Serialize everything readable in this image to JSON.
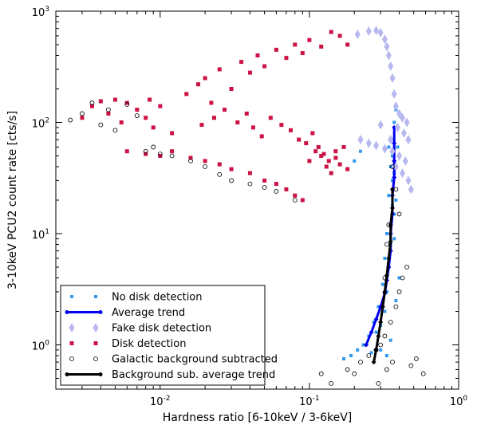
{
  "chart_data": {
    "type": "scatter",
    "xlabel": "Hardness ratio [6-10keV / 3-6keV]",
    "ylabel": "3-10keV PCU2 count rate [cts/s]",
    "xscale": "log",
    "yscale": "log",
    "xlim": [
      0.002,
      1.0
    ],
    "ylim": [
      0.4,
      1000
    ],
    "x_ticks": [
      {
        "value": 0.01,
        "base": "10",
        "exp": "-2"
      },
      {
        "value": 0.1,
        "base": "10",
        "exp": "-1"
      },
      {
        "value": 1.0,
        "base": "10",
        "exp": "0"
      }
    ],
    "y_ticks": [
      {
        "value": 1,
        "base": "10",
        "exp": "0"
      },
      {
        "value": 10,
        "base": "10",
        "exp": "1"
      },
      {
        "value": 100,
        "base": "10",
        "exp": "2"
      },
      {
        "value": 1000,
        "base": "10",
        "exp": "3"
      }
    ],
    "legend_position": "lower-left",
    "series": [
      {
        "name": "No disk detection",
        "marker": "square-small",
        "color": "#3399ee",
        "points": [
          [
            0.3,
            1.5
          ],
          [
            0.32,
            2.0
          ],
          [
            0.33,
            3.0
          ],
          [
            0.34,
            5.0
          ],
          [
            0.35,
            8.0
          ],
          [
            0.35,
            12
          ],
          [
            0.36,
            18
          ],
          [
            0.36,
            25
          ],
          [
            0.37,
            35
          ],
          [
            0.36,
            50
          ],
          [
            0.36,
            70
          ],
          [
            0.37,
            100
          ],
          [
            0.38,
            130
          ],
          [
            0.35,
            40
          ],
          [
            0.34,
            22
          ],
          [
            0.33,
            10
          ],
          [
            0.32,
            6
          ],
          [
            0.31,
            3.5
          ],
          [
            0.29,
            2.2
          ],
          [
            0.27,
            1.6
          ],
          [
            0.25,
            1.2
          ],
          [
            0.23,
            1.0
          ],
          [
            0.21,
            0.9
          ],
          [
            0.19,
            0.8
          ],
          [
            0.17,
            0.75
          ],
          [
            0.33,
            0.8
          ],
          [
            0.3,
            0.9
          ],
          [
            0.38,
            2.5
          ],
          [
            0.4,
            4.0
          ],
          [
            0.37,
            15
          ],
          [
            0.38,
            20
          ],
          [
            0.36,
            30
          ],
          [
            0.39,
            60
          ],
          [
            0.2,
            45
          ],
          [
            0.22,
            55
          ],
          [
            0.26,
            0.85
          ],
          [
            0.28,
            1.3
          ],
          [
            0.35,
            1.1
          ],
          [
            0.34,
            60
          ],
          [
            0.37,
            9
          ]
        ]
      },
      {
        "name": "Average trend",
        "marker": "line",
        "color": "#0000ee",
        "points": [
          [
            0.24,
            1.0
          ],
          [
            0.26,
            1.3
          ],
          [
            0.28,
            1.7
          ],
          [
            0.3,
            2.2
          ],
          [
            0.32,
            2.9
          ],
          [
            0.33,
            3.8
          ],
          [
            0.34,
            5.0
          ],
          [
            0.35,
            7.0
          ],
          [
            0.35,
            10
          ],
          [
            0.36,
            15
          ],
          [
            0.36,
            22
          ],
          [
            0.37,
            32
          ],
          [
            0.37,
            45
          ],
          [
            0.37,
            65
          ],
          [
            0.37,
            90
          ]
        ]
      },
      {
        "name": "Fake disk detection",
        "marker": "diamond",
        "color": "#b8b8f0",
        "points": [
          [
            0.21,
            620
          ],
          [
            0.25,
            660
          ],
          [
            0.28,
            670
          ],
          [
            0.3,
            640
          ],
          [
            0.32,
            560
          ],
          [
            0.33,
            480
          ],
          [
            0.34,
            400
          ],
          [
            0.35,
            320
          ],
          [
            0.36,
            250
          ],
          [
            0.37,
            180
          ],
          [
            0.38,
            140
          ],
          [
            0.4,
            120
          ],
          [
            0.42,
            110
          ],
          [
            0.45,
            100
          ],
          [
            0.39,
            90
          ],
          [
            0.43,
            80
          ],
          [
            0.46,
            70
          ],
          [
            0.22,
            70
          ],
          [
            0.25,
            65
          ],
          [
            0.28,
            62
          ],
          [
            0.32,
            58
          ],
          [
            0.36,
            55
          ],
          [
            0.4,
            50
          ],
          [
            0.44,
            45
          ],
          [
            0.38,
            40
          ],
          [
            0.42,
            35
          ],
          [
            0.46,
            30
          ],
          [
            0.48,
            25
          ],
          [
            0.35,
            70
          ],
          [
            0.3,
            95
          ]
        ]
      },
      {
        "name": "Disk detection",
        "marker": "square",
        "color": "#cc1144",
        "points": [
          [
            0.003,
            110
          ],
          [
            0.0035,
            140
          ],
          [
            0.004,
            155
          ],
          [
            0.0045,
            120
          ],
          [
            0.005,
            160
          ],
          [
            0.0055,
            100
          ],
          [
            0.006,
            150
          ],
          [
            0.007,
            130
          ],
          [
            0.008,
            110
          ],
          [
            0.0085,
            160
          ],
          [
            0.009,
            90
          ],
          [
            0.01,
            140
          ],
          [
            0.012,
            80
          ],
          [
            0.015,
            180
          ],
          [
            0.018,
            220
          ],
          [
            0.02,
            250
          ],
          [
            0.022,
            150
          ],
          [
            0.025,
            300
          ],
          [
            0.03,
            200
          ],
          [
            0.035,
            350
          ],
          [
            0.04,
            280
          ],
          [
            0.045,
            400
          ],
          [
            0.05,
            320
          ],
          [
            0.06,
            450
          ],
          [
            0.07,
            380
          ],
          [
            0.08,
            500
          ],
          [
            0.09,
            420
          ],
          [
            0.1,
            550
          ],
          [
            0.12,
            480
          ],
          [
            0.14,
            650
          ],
          [
            0.16,
            600
          ],
          [
            0.18,
            500
          ],
          [
            0.006,
            55
          ],
          [
            0.008,
            52
          ],
          [
            0.01,
            50
          ],
          [
            0.012,
            55
          ],
          [
            0.016,
            48
          ],
          [
            0.02,
            45
          ],
          [
            0.025,
            42
          ],
          [
            0.03,
            38
          ],
          [
            0.04,
            35
          ],
          [
            0.05,
            30
          ],
          [
            0.06,
            28
          ],
          [
            0.07,
            25
          ],
          [
            0.08,
            22
          ],
          [
            0.09,
            20
          ],
          [
            0.1,
            45
          ],
          [
            0.11,
            55
          ],
          [
            0.12,
            50
          ],
          [
            0.13,
            40
          ],
          [
            0.14,
            35
          ],
          [
            0.15,
            48
          ],
          [
            0.16,
            42
          ],
          [
            0.17,
            60
          ],
          [
            0.18,
            38
          ],
          [
            0.019,
            95
          ],
          [
            0.023,
            110
          ],
          [
            0.027,
            130
          ],
          [
            0.033,
            100
          ],
          [
            0.038,
            120
          ],
          [
            0.042,
            90
          ],
          [
            0.048,
            75
          ],
          [
            0.055,
            110
          ],
          [
            0.065,
            95
          ],
          [
            0.075,
            85
          ],
          [
            0.085,
            70
          ],
          [
            0.095,
            65
          ],
          [
            0.105,
            80
          ],
          [
            0.115,
            60
          ],
          [
            0.125,
            52
          ],
          [
            0.135,
            45
          ],
          [
            0.15,
            55
          ]
        ]
      },
      {
        "name": "Galactic background subtracted",
        "marker": "circle-open",
        "color": "#000000",
        "points": [
          [
            0.0025,
            105
          ],
          [
            0.003,
            120
          ],
          [
            0.0035,
            150
          ],
          [
            0.004,
            95
          ],
          [
            0.0045,
            130
          ],
          [
            0.005,
            85
          ],
          [
            0.006,
            145
          ],
          [
            0.007,
            115
          ],
          [
            0.008,
            55
          ],
          [
            0.009,
            60
          ],
          [
            0.01,
            52
          ],
          [
            0.012,
            50
          ],
          [
            0.016,
            45
          ],
          [
            0.02,
            40
          ],
          [
            0.025,
            34
          ],
          [
            0.03,
            30
          ],
          [
            0.04,
            28
          ],
          [
            0.05,
            26
          ],
          [
            0.06,
            24
          ],
          [
            0.08,
            20
          ],
          [
            0.2,
            0.55
          ],
          [
            0.18,
            0.6
          ],
          [
            0.22,
            0.7
          ],
          [
            0.25,
            0.8
          ],
          [
            0.28,
            0.9
          ],
          [
            0.3,
            1.0
          ],
          [
            0.32,
            1.2
          ],
          [
            0.35,
            1.6
          ],
          [
            0.38,
            2.2
          ],
          [
            0.4,
            3.0
          ],
          [
            0.42,
            4.0
          ],
          [
            0.45,
            5.0
          ],
          [
            0.48,
            0.65
          ],
          [
            0.52,
            0.75
          ],
          [
            0.58,
            0.55
          ],
          [
            0.33,
            0.6
          ],
          [
            0.36,
            0.7
          ],
          [
            0.29,
            0.45
          ],
          [
            0.14,
            0.45
          ],
          [
            0.12,
            0.55
          ],
          [
            0.4,
            15
          ],
          [
            0.38,
            25
          ],
          [
            0.36,
            40
          ],
          [
            0.34,
            12
          ],
          [
            0.33,
            8
          ],
          [
            0.32,
            4
          ]
        ]
      },
      {
        "name": "Background sub. average trend",
        "marker": "line",
        "color": "#000000",
        "points": [
          [
            0.27,
            0.7
          ],
          [
            0.28,
            0.9
          ],
          [
            0.29,
            1.2
          ],
          [
            0.3,
            1.6
          ],
          [
            0.31,
            2.2
          ],
          [
            0.32,
            3.0
          ],
          [
            0.33,
            4.2
          ],
          [
            0.34,
            6.0
          ],
          [
            0.35,
            8.5
          ],
          [
            0.35,
            12
          ],
          [
            0.36,
            17
          ],
          [
            0.36,
            25
          ]
        ]
      }
    ]
  }
}
